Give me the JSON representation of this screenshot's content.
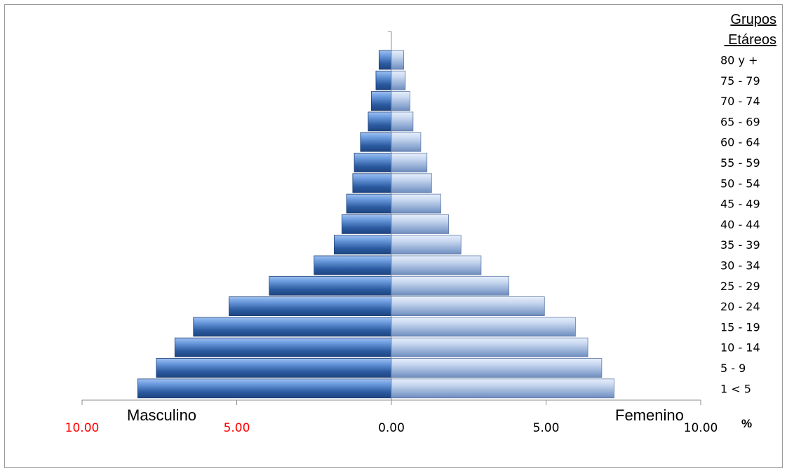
{
  "chart_data": {
    "type": "bar",
    "orientation": "horizontal-pyramid",
    "legend_title_line1": "Grupos",
    "legend_title_line2": " Etáreos",
    "side_left_label": "Masculino",
    "side_right_label": "Femenino",
    "unit_label": "%",
    "categories": [
      "80 y +",
      "75 - 79",
      "70 - 74",
      "65 - 69",
      "60 - 64",
      "55 - 59",
      "50 - 54",
      "45 - 49",
      "40 - 44",
      "35 - 39",
      "30 - 34",
      "25 - 29",
      "20 - 24",
      "15 - 19",
      "10 - 14",
      "5 - 9",
      "1 <  5"
    ],
    "series": [
      {
        "name": "Masculino",
        "values": [
          0.4,
          0.5,
          0.65,
          0.75,
          1.0,
          1.2,
          1.25,
          1.45,
          1.6,
          1.85,
          2.5,
          3.95,
          5.25,
          6.4,
          7.0,
          7.6,
          8.2
        ]
      },
      {
        "name": "Femenino",
        "values": [
          0.4,
          0.45,
          0.6,
          0.7,
          0.95,
          1.15,
          1.3,
          1.6,
          1.85,
          2.25,
          2.9,
          3.8,
          4.95,
          5.95,
          6.35,
          6.8,
          7.2
        ]
      }
    ],
    "xlim": [
      -10,
      10
    ],
    "ticks": [
      {
        "value": -10,
        "label": "10.00",
        "color": "#ff0000"
      },
      {
        "value": -5,
        "label": "5.00",
        "color": "#ff0000"
      },
      {
        "value": 0,
        "label": "0.00",
        "color": "#000000"
      },
      {
        "value": 5,
        "label": "5.00",
        "color": "#000000"
      },
      {
        "value": 10,
        "label": "10.00",
        "color": "#000000"
      }
    ],
    "colors": {
      "male_dark": "#2b5aa0",
      "male_light": "#6e9ee0",
      "female_dark": "#7f9cc8",
      "female_light": "#c9d8f0",
      "axis": "#8c8c8c"
    }
  }
}
